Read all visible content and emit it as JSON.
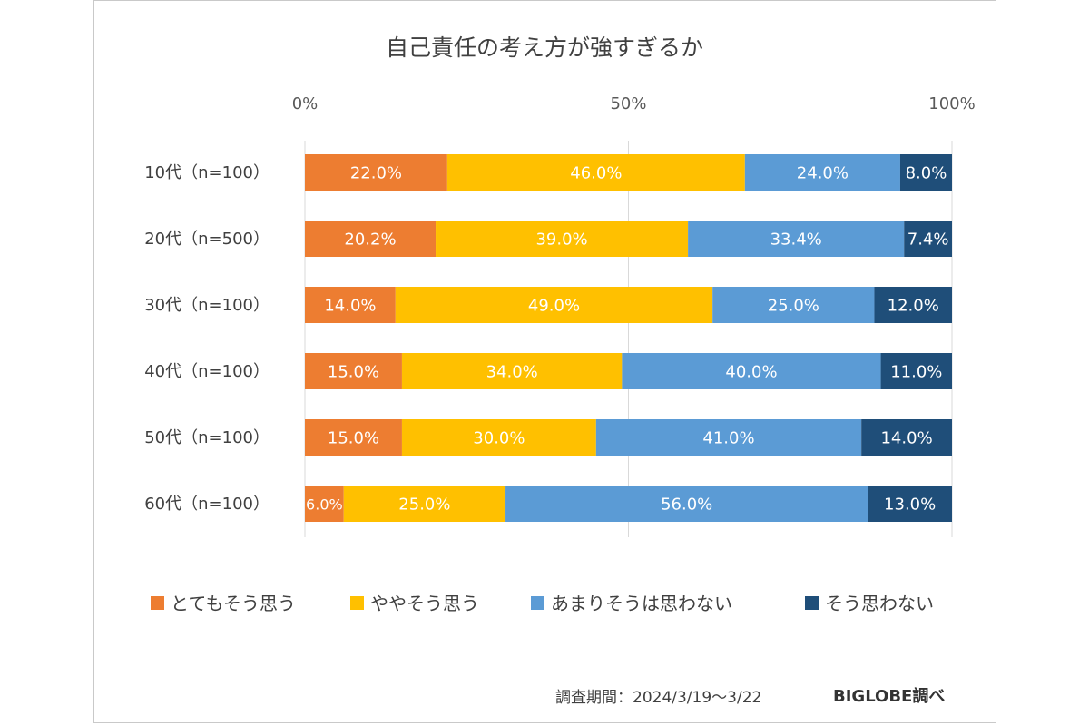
{
  "chart_data": {
    "type": "bar",
    "orientation": "horizontal",
    "stacked": "percent",
    "title": "自己責任の考え方が強すぎるか",
    "categories": [
      "10代（n=100）",
      "20代（n=500）",
      "30代（n=100）",
      "40代（n=100）",
      "50代（n=100）",
      "60代（n=100）"
    ],
    "series": [
      {
        "name": "とてもそう思う",
        "color": "#ED7D31",
        "values": [
          22.0,
          20.2,
          14.0,
          15.0,
          15.0,
          6.0
        ],
        "labels": [
          "22.0%",
          "20.2%",
          "14.0%",
          "15.0%",
          "15.0%",
          "6.0%"
        ]
      },
      {
        "name": "ややそう思う",
        "color": "#FFC000",
        "values": [
          46.0,
          39.0,
          49.0,
          34.0,
          30.0,
          25.0
        ],
        "labels": [
          "46.0%",
          "39.0%",
          "49.0%",
          "34.0%",
          "30.0%",
          "25.0%"
        ]
      },
      {
        "name": "あまりそうは思わない",
        "color": "#5B9BD5",
        "values": [
          24.0,
          33.4,
          25.0,
          40.0,
          41.0,
          56.0
        ],
        "labels": [
          "24.0%",
          "33.4%",
          "25.0%",
          "40.0%",
          "41.0%",
          "56.0%"
        ]
      },
      {
        "name": "そう思わない",
        "color": "#1F4E79",
        "values": [
          8.0,
          7.4,
          12.0,
          11.0,
          14.0,
          13.0
        ],
        "labels": [
          "8.0%",
          "7.4%",
          "12.0%",
          "11.0%",
          "14.0%",
          "13.0%"
        ]
      }
    ],
    "xlim": [
      0,
      100
    ],
    "x_ticks": [
      "0%",
      "50%",
      "100%"
    ],
    "grid": true,
    "legend": "bottom"
  },
  "footer": {
    "source": "調査期間：2024/3/19～3/22",
    "brand": "BIGLOBE調べ"
  }
}
